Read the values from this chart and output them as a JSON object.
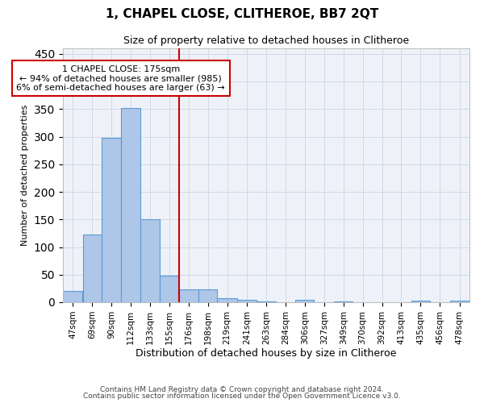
{
  "title1": "1, CHAPEL CLOSE, CLITHEROE, BB7 2QT",
  "title2": "Size of property relative to detached houses in Clitheroe",
  "xlabel": "Distribution of detached houses by size in Clitheroe",
  "ylabel": "Number of detached properties",
  "footer1": "Contains HM Land Registry data © Crown copyright and database right 2024.",
  "footer2": "Contains public sector information licensed under the Open Government Licence v3.0.",
  "bin_labels": [
    "47sqm",
    "69sqm",
    "90sqm",
    "112sqm",
    "133sqm",
    "155sqm",
    "176sqm",
    "198sqm",
    "219sqm",
    "241sqm",
    "263sqm",
    "284sqm",
    "306sqm",
    "327sqm",
    "349sqm",
    "370sqm",
    "392sqm",
    "413sqm",
    "435sqm",
    "456sqm",
    "478sqm"
  ],
  "bar_values": [
    20,
    122,
    298,
    352,
    150,
    48,
    24,
    24,
    8,
    5,
    1,
    0,
    5,
    0,
    1,
    0,
    0,
    0,
    3,
    0,
    3
  ],
  "bar_color": "#aec6e8",
  "bar_edge_color": "#5b9bd5",
  "grid_color": "#d0d8e8",
  "bg_color": "#eef2f8",
  "vline_color": "#cc0000",
  "annotation_line1": "1 CHAPEL CLOSE: 175sqm",
  "annotation_line2": "← 94% of detached houses are smaller (985)",
  "annotation_line3": "6% of semi-detached houses are larger (63) →",
  "annotation_box_color": "#cc0000",
  "ylim": [
    0,
    460
  ],
  "yticks": [
    0,
    50,
    100,
    150,
    200,
    250,
    300,
    350,
    400,
    450
  ],
  "bin_edges": [
    47,
    69,
    90,
    112,
    133,
    155,
    176,
    198,
    219,
    241,
    263,
    284,
    306,
    327,
    349,
    370,
    392,
    413,
    435,
    456,
    478,
    500
  ]
}
